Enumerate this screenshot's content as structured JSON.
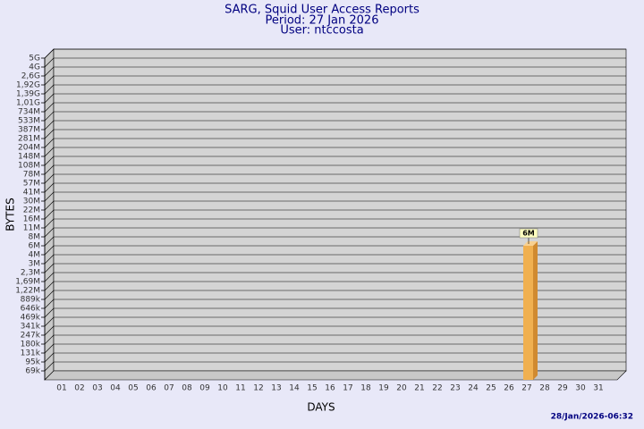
{
  "chart_data": {
    "type": "bar",
    "title": "SARG, Squid User Access Reports",
    "period": "Period: 27 Jan 2026",
    "user": "User: ntccosta",
    "x_label": "DAYS",
    "y_label": "BYTES",
    "timestamp": "28/Jan/2026-06:32",
    "categories": [
      "01",
      "02",
      "03",
      "04",
      "05",
      "06",
      "07",
      "08",
      "09",
      "10",
      "11",
      "12",
      "13",
      "14",
      "15",
      "16",
      "17",
      "18",
      "19",
      "20",
      "21",
      "22",
      "23",
      "24",
      "25",
      "26",
      "27",
      "28",
      "29",
      "30",
      "31"
    ],
    "values": [
      null,
      null,
      null,
      null,
      null,
      null,
      null,
      null,
      null,
      null,
      null,
      null,
      null,
      null,
      null,
      null,
      null,
      null,
      null,
      null,
      null,
      null,
      null,
      null,
      null,
      null,
      6000000,
      null,
      null,
      null,
      null
    ],
    "value_labels": [
      null,
      null,
      null,
      null,
      null,
      null,
      null,
      null,
      null,
      null,
      null,
      null,
      null,
      null,
      null,
      null,
      null,
      null,
      null,
      null,
      null,
      null,
      null,
      null,
      null,
      null,
      "6M",
      null,
      null,
      null,
      null
    ],
    "color": "#f0b050",
    "ylim": [
      50000,
      5000000000
    ],
    "yticks": [
      {
        "value": 69000,
        "label": "69k"
      },
      {
        "value": 95000,
        "label": "95k"
      },
      {
        "value": 131000,
        "label": "131k"
      },
      {
        "value": 180000,
        "label": "180k"
      },
      {
        "value": 247000,
        "label": "247k"
      },
      {
        "value": 341000,
        "label": "341k"
      },
      {
        "value": 469000,
        "label": "469k"
      },
      {
        "value": 646000,
        "label": "646k"
      },
      {
        "value": 889000,
        "label": "889k"
      },
      {
        "value": 1220000,
        "label": "1,22M"
      },
      {
        "value": 1690000,
        "label": "1,69M"
      },
      {
        "value": 2300000,
        "label": "2,3M"
      },
      {
        "value": 3000000,
        "label": "3M"
      },
      {
        "value": 4000000,
        "label": "4M"
      },
      {
        "value": 6000000,
        "label": "6M"
      },
      {
        "value": 8000000,
        "label": "8M"
      },
      {
        "value": 11000000,
        "label": "11M"
      },
      {
        "value": 16000000,
        "label": "16M"
      },
      {
        "value": 22000000,
        "label": "22M"
      },
      {
        "value": 30000000,
        "label": "30M"
      },
      {
        "value": 41000000,
        "label": "41M"
      },
      {
        "value": 57000000,
        "label": "57M"
      },
      {
        "value": 78000000,
        "label": "78M"
      },
      {
        "value": 108000000,
        "label": "108M"
      },
      {
        "value": 148000000,
        "label": "148M"
      },
      {
        "value": 204000000,
        "label": "204M"
      },
      {
        "value": 281000000,
        "label": "281M"
      },
      {
        "value": 387000000,
        "label": "387M"
      },
      {
        "value": 533000000,
        "label": "533M"
      },
      {
        "value": 734000000,
        "label": "734M"
      },
      {
        "value": 1010000000,
        "label": "1,01G"
      },
      {
        "value": 1390000000,
        "label": "1,39G"
      },
      {
        "value": 1920000000,
        "label": "1,92G"
      },
      {
        "value": 2600000000,
        "label": "2,6G"
      },
      {
        "value": 4000000000,
        "label": "4G"
      },
      {
        "value": 5000000000,
        "label": "5G"
      }
    ],
    "grid": true
  }
}
